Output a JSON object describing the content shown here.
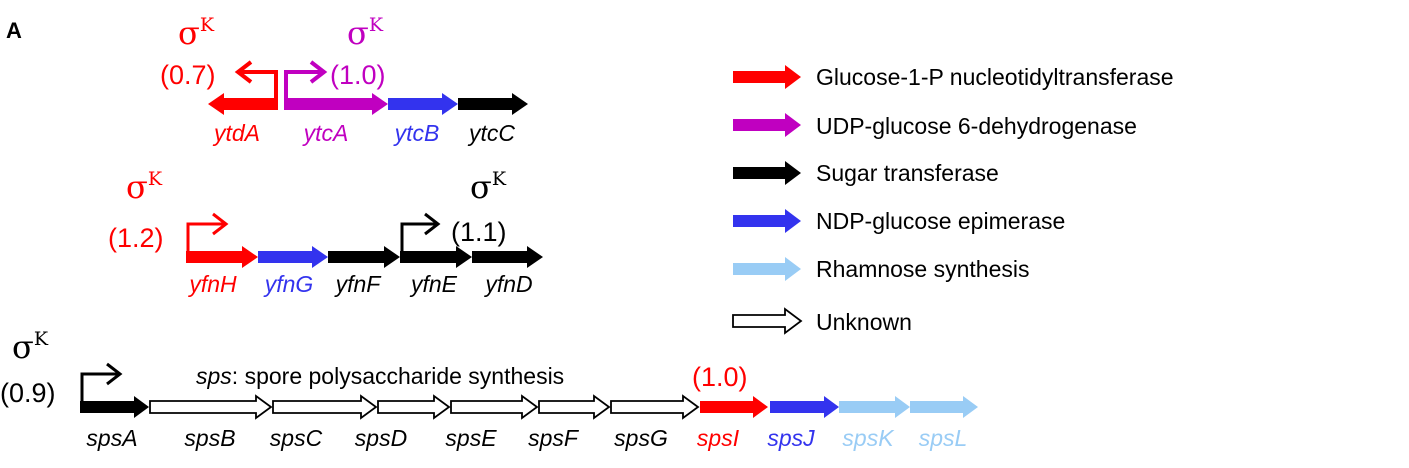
{
  "panel_label": "A",
  "colors": {
    "red": "#ff0000",
    "magenta": "#c000c0",
    "blue": "#3333ee",
    "black": "#000000",
    "lightblue": "#99ccf5",
    "white": "#ffffff"
  },
  "operons": [
    {
      "genes": [
        {
          "name": "ytdA",
          "color": "red",
          "direction": "left"
        },
        {
          "name": "ytcA",
          "color": "magenta",
          "direction": "right"
        },
        {
          "name": "ytcB",
          "color": "blue",
          "direction": "right"
        },
        {
          "name": "ytcC",
          "color": "black",
          "direction": "right"
        }
      ],
      "promoters": [
        {
          "sigma": "σ",
          "sigma_sup": "K",
          "value": "(0.7)",
          "color": "red",
          "direction": "left"
        },
        {
          "sigma": "σ",
          "sigma_sup": "K",
          "value": "(1.0)",
          "color": "magenta",
          "direction": "right"
        }
      ]
    },
    {
      "genes": [
        {
          "name": "yfnH",
          "color": "red",
          "direction": "right"
        },
        {
          "name": "yfnG",
          "color": "blue",
          "direction": "right"
        },
        {
          "name": "yfnF",
          "color": "black",
          "direction": "right"
        },
        {
          "name": "yfnE",
          "color": "black",
          "direction": "right"
        },
        {
          "name": "yfnD",
          "color": "black",
          "direction": "right"
        }
      ],
      "promoters": [
        {
          "sigma": "σ",
          "sigma_sup": "K",
          "value": "(1.2)",
          "color": "red",
          "direction": "right"
        },
        {
          "sigma": "σ",
          "sigma_sup": "K",
          "value": "(1.1)",
          "color": "black",
          "direction": "right"
        }
      ]
    },
    {
      "title_italic": "sps",
      "title_rest": ": spore polysaccharide synthesis",
      "genes": [
        {
          "name": "spsA",
          "color": "black",
          "direction": "right"
        },
        {
          "name": "spsB",
          "color": "white",
          "direction": "right"
        },
        {
          "name": "spsC",
          "color": "white",
          "direction": "right"
        },
        {
          "name": "spsD",
          "color": "white",
          "direction": "right"
        },
        {
          "name": "spsE",
          "color": "white",
          "direction": "right"
        },
        {
          "name": "spsF",
          "color": "white",
          "direction": "right"
        },
        {
          "name": "spsG",
          "color": "white",
          "direction": "right"
        },
        {
          "name": "spsI",
          "color": "red",
          "direction": "right"
        },
        {
          "name": "spsJ",
          "color": "blue",
          "direction": "right"
        },
        {
          "name": "spsK",
          "color": "lightblue",
          "direction": "right"
        },
        {
          "name": "spsL",
          "color": "lightblue",
          "direction": "right"
        }
      ],
      "promoters": [
        {
          "sigma": "σ",
          "sigma_sup": "K",
          "value": "(0.9)",
          "color": "black",
          "direction": "right"
        }
      ],
      "extra_values": [
        {
          "value": "(1.0)",
          "color": "red"
        }
      ]
    }
  ],
  "legend": [
    {
      "label": "Glucose-1-P nucleotidyltransferase",
      "color": "red"
    },
    {
      "label": "UDP-glucose 6-dehydrogenase",
      "color": "magenta"
    },
    {
      "label": "Sugar transferase",
      "color": "black"
    },
    {
      "label": "NDP-glucose epimerase",
      "color": "blue"
    },
    {
      "label": "Rhamnose synthesis",
      "color": "lightblue"
    },
    {
      "label": "Unknown",
      "color": "white"
    }
  ]
}
